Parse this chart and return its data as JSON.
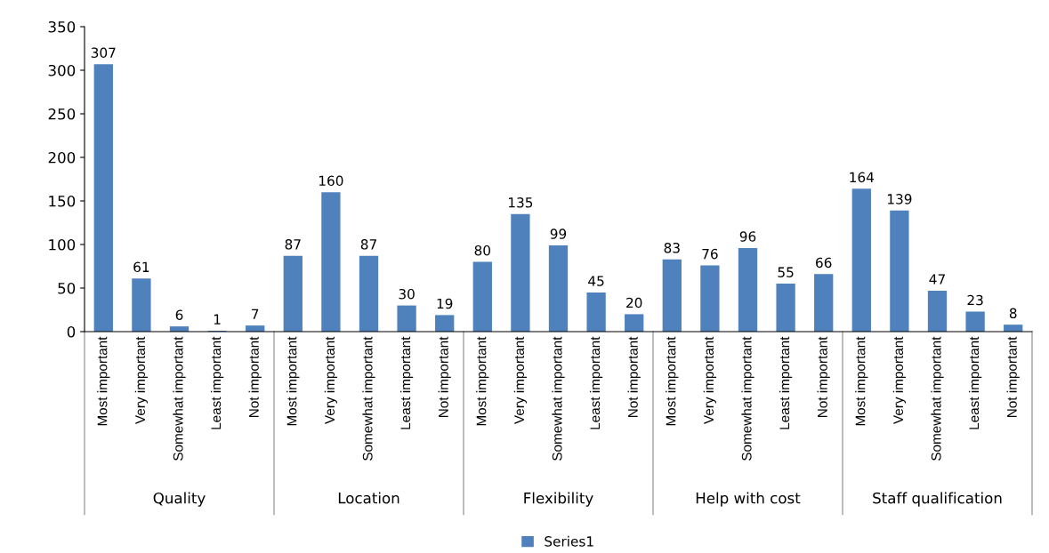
{
  "chart_data": {
    "type": "bar",
    "categories": [
      "Most important",
      "Very important",
      "Somewhat important",
      "Least important",
      "Not important",
      "Most important",
      "Very important",
      "Somewhat important",
      "Least important",
      "Not important",
      "Most important",
      "Very important",
      "Somewhat important",
      "Least important",
      "Not important",
      "Most important",
      "Very important",
      "Somewhat important",
      "Least important",
      "Not important",
      "Most important",
      "Very important",
      "Somewhat important",
      "Least important",
      "Not important"
    ],
    "series": [
      {
        "name": "Series1",
        "color": "#4f81bd",
        "values": [
          307,
          61,
          6,
          1,
          7,
          87,
          160,
          87,
          30,
          19,
          80,
          135,
          99,
          45,
          20,
          83,
          76,
          96,
          55,
          66,
          164,
          139,
          47,
          23,
          8
        ]
      }
    ],
    "annotations": [
      "Quality",
      "Location",
      "Flexibility",
      "Help with cost",
      "Staff qualification"
    ],
    "ylim": [
      0,
      350
    ],
    "yticks": [
      0,
      50,
      100,
      150,
      200,
      250,
      300,
      350
    ],
    "data_labels": true,
    "grid": false,
    "legend": "bottom"
  }
}
